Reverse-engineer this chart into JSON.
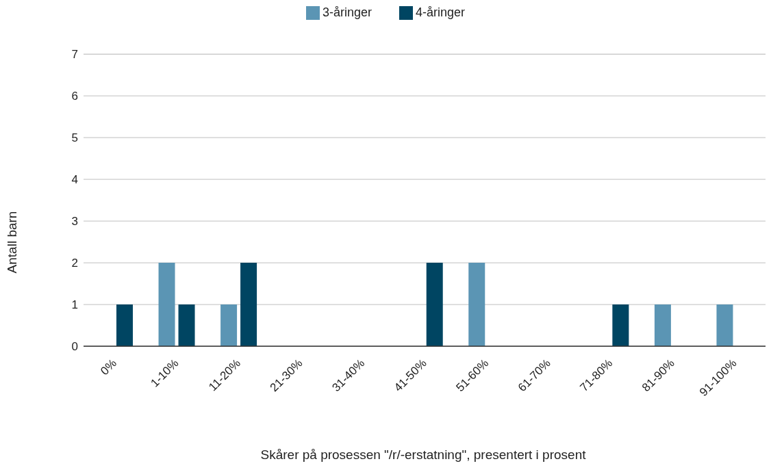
{
  "chart_data": {
    "type": "bar",
    "xlabel": "Skårer på prosessen \"/r/-erstatning\", presentert i prosent",
    "ylabel": "Antall barn",
    "categories": [
      "0%",
      "1-10%",
      "11-20%",
      "21-30%",
      "31-40%",
      "41-50%",
      "51-60%",
      "61-70%",
      "71-80%",
      "81-90%",
      "91-100%"
    ],
    "series": [
      {
        "name": "3-åringer",
        "color": "#5b95b4",
        "values": [
          0,
          2,
          1,
          0,
          0,
          0,
          2,
          0,
          0,
          1,
          1
        ]
      },
      {
        "name": "4-åringer",
        "color": "#004562",
        "values": [
          1,
          1,
          2,
          0,
          0,
          2,
          0,
          0,
          1,
          0,
          0
        ]
      }
    ],
    "ylim": [
      0,
      7
    ],
    "yticks": [
      0,
      1,
      2,
      3,
      4,
      5,
      6,
      7
    ],
    "grid": "y",
    "legend": "top"
  }
}
